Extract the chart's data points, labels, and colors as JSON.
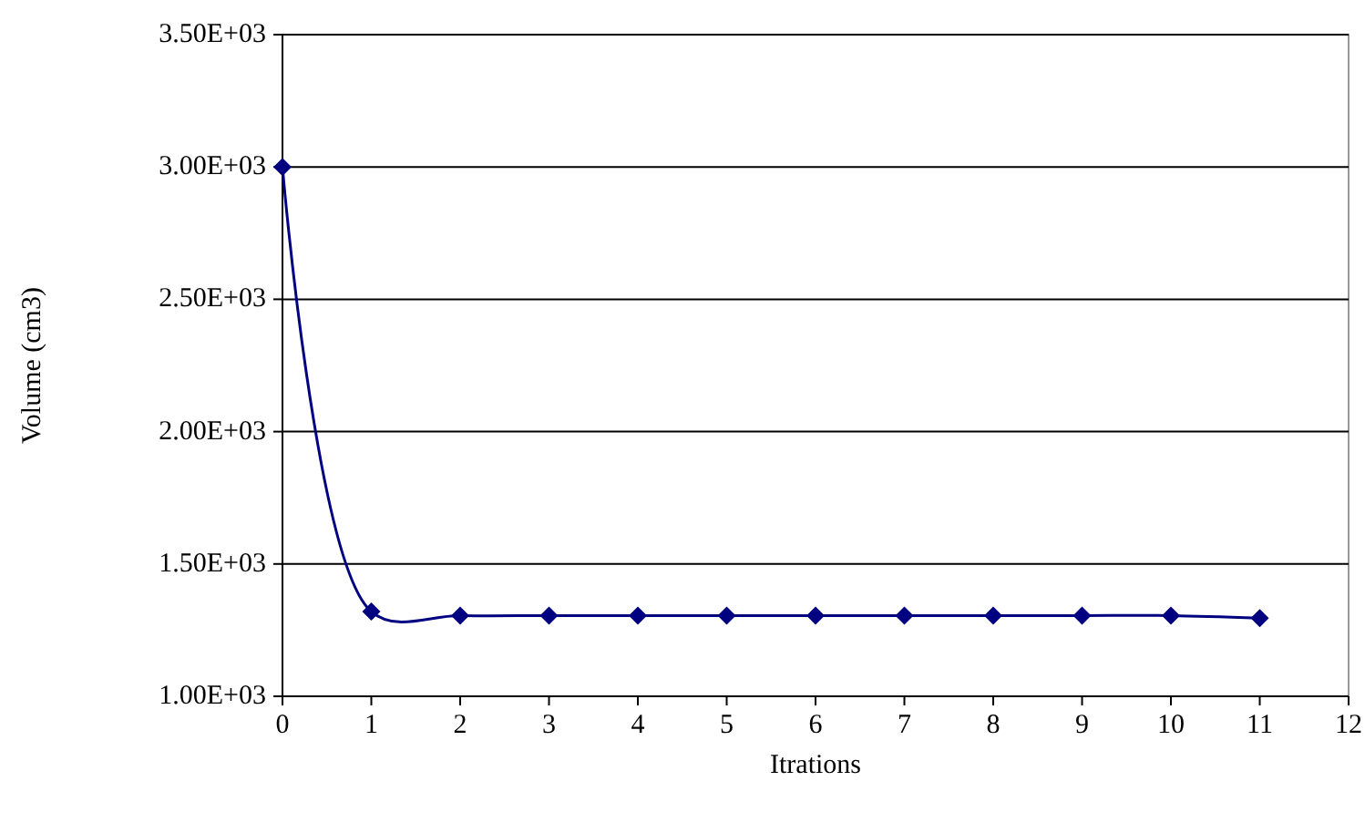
{
  "chart_data": {
    "type": "line",
    "xlabel": "Itrations",
    "ylabel": "Volume (cm3)",
    "x": [
      0,
      1,
      2,
      3,
      4,
      5,
      6,
      7,
      8,
      9,
      10,
      11
    ],
    "series": [
      {
        "color": "#000080",
        "values": [
          3000,
          1320,
          1305,
          1305,
          1305,
          1305,
          1305,
          1305,
          1305,
          1305,
          1305,
          1295
        ]
      }
    ],
    "xlim": [
      0,
      12
    ],
    "xticks": [
      0,
      1,
      2,
      3,
      4,
      5,
      6,
      7,
      8,
      9,
      10,
      11,
      12
    ],
    "ylim": [
      1000,
      3500
    ],
    "yticks": [
      {
        "value": 1000,
        "label": "1.00E+03"
      },
      {
        "value": 1500,
        "label": "1.50E+03"
      },
      {
        "value": 2000,
        "label": "2.00E+03"
      },
      {
        "value": 2500,
        "label": "2.50E+03"
      },
      {
        "value": 3000,
        "label": "3.00E+03"
      },
      {
        "value": 3500,
        "label": "3.50E+03"
      }
    ],
    "grid": "y",
    "marker": "diamond",
    "line_style": "solid"
  }
}
